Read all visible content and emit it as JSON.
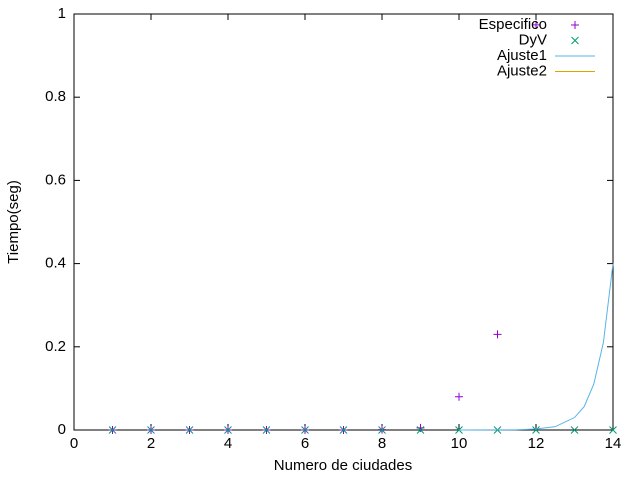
{
  "chart_data": {
    "type": "scatter",
    "xlabel": "Numero de ciudades",
    "ylabel": "Tiempo(seg)",
    "xlim": [
      0,
      14
    ],
    "ylim": [
      0,
      1
    ],
    "xticks": [
      0,
      2,
      4,
      6,
      8,
      10,
      12,
      14
    ],
    "yticks": [
      0,
      0.2,
      0.4,
      0.6,
      0.8,
      1
    ],
    "legend": "top-right",
    "series": [
      {
        "name": "Especifico",
        "color": "#9400d3",
        "style": "plus",
        "x": [
          1,
          2,
          3,
          4,
          5,
          6,
          7,
          8,
          9,
          10,
          11,
          12
        ],
        "values": [
          0,
          0,
          0,
          0,
          0,
          0,
          0,
          0.001,
          0.005,
          0.08,
          0.23,
          0.974
        ]
      },
      {
        "name": "DyV",
        "color": "#009e73",
        "style": "cross",
        "x": [
          1,
          2,
          3,
          4,
          5,
          6,
          7,
          8,
          9,
          10,
          11,
          12,
          13,
          14
        ],
        "values": [
          0,
          0,
          0,
          0,
          0,
          0,
          0,
          0,
          0,
          0,
          0,
          0,
          0,
          0
        ]
      },
      {
        "name": "Ajuste1",
        "color": "#56b4e9",
        "style": "line",
        "x": [
          10,
          11,
          11.5,
          12,
          12.5,
          13,
          13.25,
          13.5,
          13.75,
          14
        ],
        "values": [
          1e-05,
          0.0002,
          0.0006,
          0.0023,
          0.008,
          0.03,
          0.056,
          0.11,
          0.21,
          0.4
        ]
      },
      {
        "name": "Ajuste2",
        "color": "#e69f00",
        "style": "line",
        "x": [
          0,
          14
        ],
        "values": [
          null,
          null
        ]
      }
    ]
  }
}
